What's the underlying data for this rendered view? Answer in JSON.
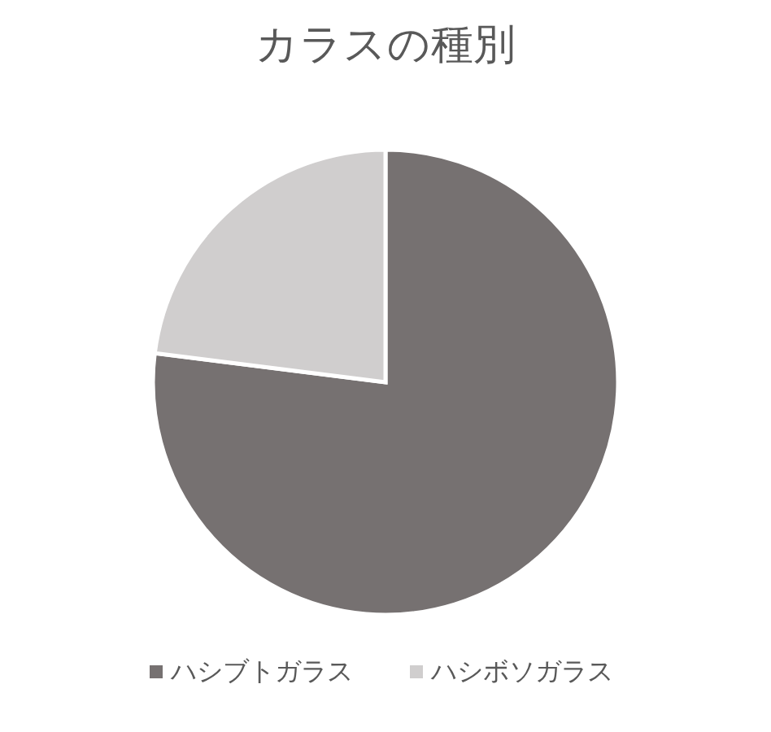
{
  "chart_data": {
    "type": "pie",
    "title": "カラスの種別",
    "categories": [
      "ハシブトガラス",
      "ハシボソガラス"
    ],
    "values": [
      77,
      23
    ],
    "colors": [
      "#767171",
      "#d0cece"
    ],
    "legend": "bottom"
  }
}
